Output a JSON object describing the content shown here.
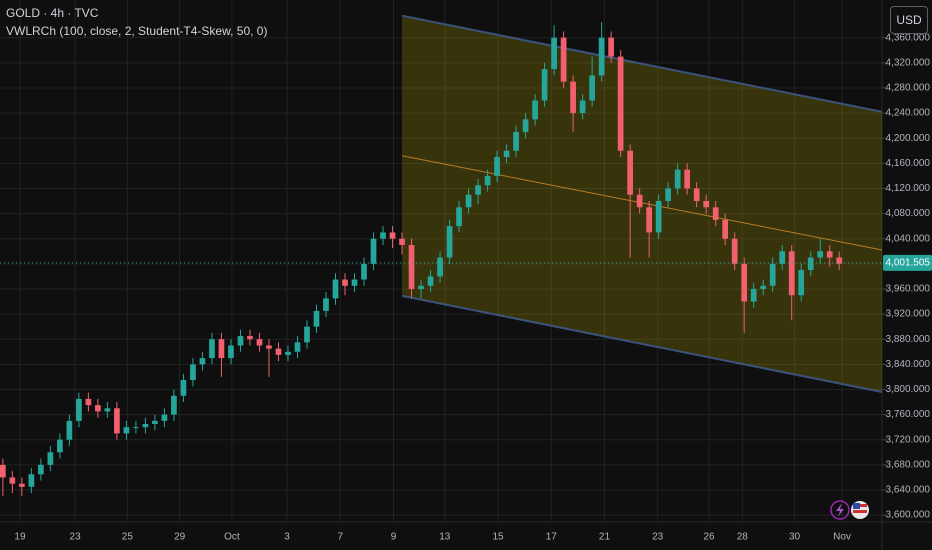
{
  "header": {
    "symbol": "GOLD · 4h · TVC",
    "indicator": "VWLRCh (100, close, 2, Student-T4-Skew, 50, 0)",
    "currency": "USD"
  },
  "chart_data": {
    "type": "candlestick",
    "xlim": [
      -0.3,
      92.5
    ],
    "ylim": [
      3589,
      4420
    ],
    "grid": true,
    "up_color": "#26a69a",
    "down_color": "#f0606e",
    "xticks": [
      {
        "value": 1.8,
        "label": "19"
      },
      {
        "value": 7.6,
        "label": "23"
      },
      {
        "value": 13.1,
        "label": "25"
      },
      {
        "value": 18.6,
        "label": "29"
      },
      {
        "value": 24.1,
        "label": "Oct"
      },
      {
        "value": 29.9,
        "label": "3"
      },
      {
        "value": 35.5,
        "label": "7"
      },
      {
        "value": 41.1,
        "label": "9"
      },
      {
        "value": 46.5,
        "label": "13"
      },
      {
        "value": 52.1,
        "label": "15"
      },
      {
        "value": 57.7,
        "label": "17"
      },
      {
        "value": 63.3,
        "label": "21"
      },
      {
        "value": 68.9,
        "label": "23"
      },
      {
        "value": 74.3,
        "label": "26"
      },
      {
        "value": 77.8,
        "label": "28"
      },
      {
        "value": 83.3,
        "label": "30"
      },
      {
        "value": 88.3,
        "label": "Nov"
      }
    ],
    "yticks": [
      {
        "value": 3600,
        "label": "3,600.000"
      },
      {
        "value": 3640,
        "label": "3,640.000"
      },
      {
        "value": 3680,
        "label": "3,680.000"
      },
      {
        "value": 3720,
        "label": "3,720.000"
      },
      {
        "value": 3760,
        "label": "3,760.000"
      },
      {
        "value": 3800,
        "label": "3,800.000"
      },
      {
        "value": 3840,
        "label": "3,840.000"
      },
      {
        "value": 3880,
        "label": "3,880.000"
      },
      {
        "value": 3920,
        "label": "3,920.000"
      },
      {
        "value": 3960,
        "label": "3,960.000"
      },
      {
        "value": 4000,
        "label": "4,000.000"
      },
      {
        "value": 4040,
        "label": "4,040.000"
      },
      {
        "value": 4080,
        "label": "4,080.000"
      },
      {
        "value": 4120,
        "label": "4,120.000"
      },
      {
        "value": 4160,
        "label": "4,160.000"
      },
      {
        "value": 4200,
        "label": "4,200.000"
      },
      {
        "value": 4240,
        "label": "4,240.000"
      },
      {
        "value": 4280,
        "label": "4,280.000"
      },
      {
        "value": 4320,
        "label": "4,320.000"
      },
      {
        "value": 4360,
        "label": "4,360.000"
      }
    ],
    "open": [
      3680,
      3660,
      3650,
      3645,
      3665,
      3680,
      3700,
      3720,
      3750,
      3785,
      3775,
      3765,
      3770,
      3730,
      3740,
      3740,
      3745,
      3750,
      3760,
      3790,
      3815,
      3840,
      3850,
      3880,
      3850,
      3870,
      3885,
      3880,
      3870,
      3865,
      3855,
      3860,
      3875,
      3900,
      3925,
      3945,
      3975,
      3965,
      3975,
      4000,
      4040,
      4050,
      4040,
      4030,
      3960,
      3965,
      3980,
      4010,
      4060,
      4090,
      4110,
      4125,
      4140,
      4170,
      4180,
      4210,
      4230,
      4260,
      4310,
      4360,
      4290,
      4240,
      4260,
      4300,
      4360,
      4330,
      4180,
      4110,
      4090,
      4050,
      4100,
      4120,
      4150,
      4120,
      4100,
      4090,
      4070,
      4040,
      4000,
      3940,
      3960,
      3965,
      4000,
      4020,
      3950,
      3990,
      4010,
      4020,
      4010
    ],
    "high": [
      3690,
      3670,
      3660,
      3675,
      3690,
      3710,
      3730,
      3760,
      3795,
      3795,
      3785,
      3780,
      3780,
      3750,
      3750,
      3755,
      3760,
      3770,
      3800,
      3825,
      3850,
      3860,
      3890,
      3890,
      3880,
      3895,
      3895,
      3890,
      3880,
      3875,
      3870,
      3885,
      3910,
      3935,
      3955,
      3985,
      3985,
      3985,
      4010,
      4050,
      4060,
      4060,
      4050,
      4040,
      3975,
      3990,
      4020,
      4070,
      4100,
      4120,
      4135,
      4150,
      4180,
      4190,
      4220,
      4240,
      4270,
      4320,
      4380,
      4370,
      4300,
      4270,
      4330,
      4385,
      4370,
      4340,
      4190,
      4120,
      4100,
      4110,
      4130,
      4160,
      4160,
      4130,
      4110,
      4100,
      4080,
      4050,
      4010,
      3970,
      3975,
      4010,
      4030,
      4030,
      4000,
      4020,
      4040,
      4030,
      4020
    ],
    "low": [
      3630,
      3635,
      3630,
      3635,
      3655,
      3670,
      3690,
      3710,
      3740,
      3765,
      3755,
      3755,
      3720,
      3720,
      3730,
      3730,
      3735,
      3740,
      3750,
      3780,
      3805,
      3830,
      3840,
      3820,
      3840,
      3860,
      3870,
      3860,
      3820,
      3845,
      3845,
      3850,
      3865,
      3890,
      3915,
      3935,
      3950,
      3955,
      3965,
      3990,
      4030,
      4025,
      4015,
      3945,
      3945,
      3955,
      3970,
      4000,
      4050,
      4080,
      4095,
      4115,
      4130,
      4160,
      4170,
      4200,
      4220,
      4250,
      4300,
      4280,
      4210,
      4230,
      4250,
      4290,
      4320,
      4170,
      4010,
      4080,
      4010,
      4040,
      4090,
      4110,
      4110,
      4090,
      4080,
      4060,
      4030,
      3990,
      3890,
      3930,
      3950,
      3955,
      3990,
      3910,
      3940,
      3980,
      4000,
      3995,
      3990
    ],
    "close": [
      3660,
      3650,
      3645,
      3665,
      3680,
      3700,
      3720,
      3750,
      3785,
      3775,
      3765,
      3770,
      3730,
      3740,
      3740,
      3745,
      3750,
      3760,
      3790,
      3815,
      3840,
      3850,
      3880,
      3850,
      3870,
      3885,
      3880,
      3870,
      3865,
      3855,
      3860,
      3875,
      3900,
      3925,
      3945,
      3975,
      3965,
      3975,
      4000,
      4040,
      4050,
      4040,
      4030,
      3960,
      3965,
      3980,
      4010,
      4060,
      4090,
      4110,
      4125,
      4140,
      4170,
      4180,
      4210,
      4230,
      4260,
      4310,
      4360,
      4290,
      4240,
      4260,
      4300,
      4360,
      4330,
      4180,
      4110,
      4090,
      4050,
      4100,
      4120,
      4150,
      4120,
      4100,
      4090,
      4070,
      4040,
      4000,
      3940,
      3960,
      3965,
      4000,
      4020,
      3950,
      3990,
      4010,
      4020,
      4010,
      4000
    ],
    "channel": {
      "x": [
        42,
        92.5
      ],
      "upper": [
        4395,
        4242
      ],
      "middle": [
        4172,
        4022
      ],
      "lower": [
        3949,
        3796
      ],
      "line_color": "#3d5a8a",
      "mid_color": "#c8862a",
      "fill": "#c8b400"
    },
    "last_price": {
      "value": 4001.505,
      "label": "4,001.505"
    }
  }
}
